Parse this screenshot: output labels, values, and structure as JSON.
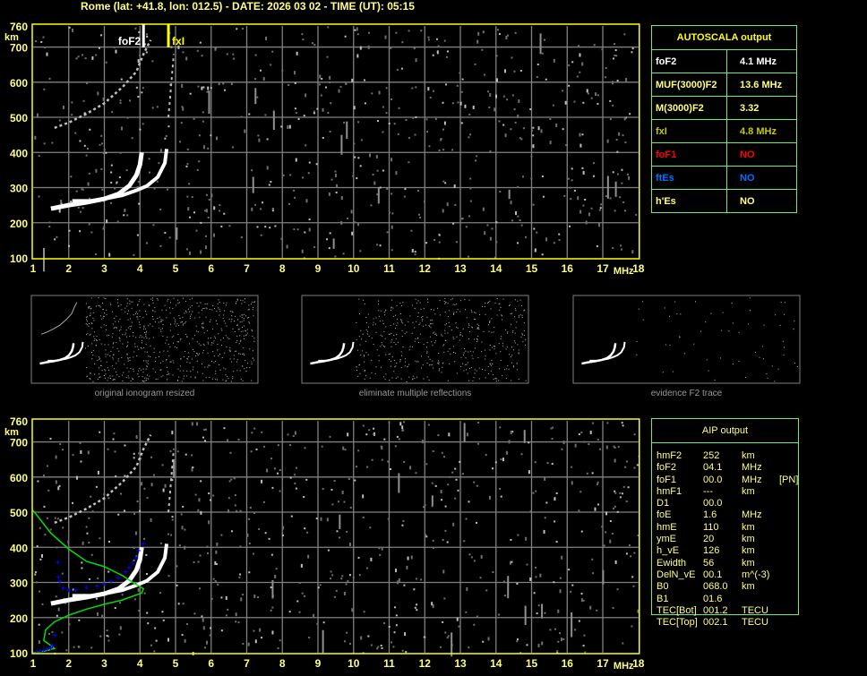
{
  "header": {
    "title": "Rome (lat: +41.8, lon: 012.5) - DATE: 2026 03 02 - TIME (UT): 05:15"
  },
  "axes": {
    "y_ticks": [
      "760",
      "700",
      "600",
      "500",
      "400",
      "300",
      "200",
      "100"
    ],
    "y_unit": "km",
    "x_ticks": [
      "1",
      "2",
      "3",
      "4",
      "5",
      "6",
      "7",
      "8",
      "9",
      "10",
      "11",
      "12",
      "13",
      "14",
      "15",
      "16",
      "17",
      "18"
    ],
    "x_unit": "MHz",
    "x_range_mhz": [
      1,
      18
    ],
    "y_range_km": [
      100,
      760
    ]
  },
  "markers": {
    "foF2": {
      "label": "foF2",
      "freq_mhz": 4.1,
      "color": "#ffffff"
    },
    "fxI": {
      "label": "fxI",
      "freq_mhz": 4.8,
      "color": "#ffff00"
    }
  },
  "colors": {
    "frame": "#ffff00",
    "grid": "#808080",
    "table_border": "#60f080",
    "profile": "#00e000",
    "aip_points": "#0000ff"
  },
  "autoscala": {
    "title": "AUTOSCALA output",
    "rows": [
      {
        "label": "foF2",
        "value": "4.1 MHz",
        "color": "#ffffff"
      },
      {
        "label": "MUF(3000)F2",
        "value": "13.6 MHz",
        "color": "#ffff80"
      },
      {
        "label": "M(3000)F2",
        "value": "3.32",
        "color": "#ffff80"
      },
      {
        "label": "fxI",
        "value": "4.8 MHz",
        "color": "#c8c800"
      },
      {
        "label": "foF1",
        "value": "NO",
        "color": "#ff0000"
      },
      {
        "label": "ftEs",
        "value": "NO",
        "color": "#0070ff"
      },
      {
        "label": "h'Es",
        "value": "NO",
        "color": "#ffff80"
      }
    ]
  },
  "thumbnails": [
    {
      "caption": "original ionogram resized"
    },
    {
      "caption": "eliminate multiple reflections"
    },
    {
      "caption": "evidence F2 trace"
    }
  ],
  "aip": {
    "title": "AIP output",
    "rows": [
      {
        "name": "hmF2",
        "value": "252",
        "unit": "km",
        "extra": ""
      },
      {
        "name": "foF2",
        "value": "04.1",
        "unit": "MHz",
        "extra": ""
      },
      {
        "name": "foF1",
        "value": "00.0",
        "unit": "MHz",
        "extra": "[PN]"
      },
      {
        "name": "hmF1",
        "value": "---",
        "unit": "km",
        "extra": ""
      },
      {
        "name": "D1",
        "value": "00.0",
        "unit": "",
        "extra": ""
      },
      {
        "name": "foE",
        "value": "1.6",
        "unit": "MHz",
        "extra": ""
      },
      {
        "name": "hmE",
        "value": "110",
        "unit": "km",
        "extra": ""
      },
      {
        "name": "ymE",
        "value": "20",
        "unit": "km",
        "extra": ""
      },
      {
        "name": "h_vE",
        "value": "126",
        "unit": "km",
        "extra": ""
      },
      {
        "name": "Ewidth",
        "value": "56",
        "unit": "km",
        "extra": ""
      },
      {
        "name": "DelN_vE",
        "value": "00.1",
        "unit": "m^(-3)",
        "extra": ""
      },
      {
        "name": "B0",
        "value": "068.0",
        "unit": "km",
        "extra": ""
      },
      {
        "name": "B1",
        "value": "01.6",
        "unit": "",
        "extra": ""
      },
      {
        "name": "TEC[Bot]",
        "value": "001.2",
        "unit": "TECU",
        "extra": ""
      },
      {
        "name": "TEC[Top]",
        "value": "002.1",
        "unit": "TECU",
        "extra": ""
      }
    ]
  },
  "traces": {
    "o_mode": [
      [
        1.5,
        240
      ],
      [
        2.0,
        250
      ],
      [
        2.5,
        258
      ],
      [
        3.0,
        268
      ],
      [
        3.4,
        282
      ],
      [
        3.7,
        305
      ],
      [
        3.9,
        335
      ],
      [
        4.0,
        365
      ],
      [
        4.05,
        400
      ]
    ],
    "x_mode": [
      [
        2.1,
        262
      ],
      [
        2.6,
        262
      ],
      [
        3.0,
        268
      ],
      [
        3.5,
        278
      ],
      [
        3.9,
        292
      ],
      [
        4.2,
        305
      ],
      [
        4.5,
        330
      ],
      [
        4.7,
        370
      ],
      [
        4.75,
        410
      ]
    ],
    "multiple": [
      [
        1.6,
        470
      ],
      [
        2.0,
        485
      ],
      [
        2.5,
        510
      ],
      [
        3.0,
        540
      ],
      [
        3.5,
        585
      ],
      [
        3.9,
        630
      ],
      [
        4.1,
        680
      ],
      [
        4.3,
        720
      ]
    ],
    "x_multiple": [
      [
        4.8,
        500
      ],
      [
        4.85,
        560
      ],
      [
        4.9,
        620
      ],
      [
        4.95,
        680
      ]
    ],
    "profile": [
      [
        1.0,
        505
      ],
      [
        1.5,
        440
      ],
      [
        2.0,
        395
      ],
      [
        2.5,
        360
      ],
      [
        3.0,
        345
      ],
      [
        3.5,
        320
      ],
      [
        3.8,
        300
      ],
      [
        4.1,
        282
      ],
      [
        4.05,
        270
      ],
      [
        3.5,
        250
      ],
      [
        3.0,
        238
      ],
      [
        2.5,
        224
      ],
      [
        2.0,
        207
      ],
      [
        1.6,
        188
      ],
      [
        1.35,
        165
      ],
      [
        1.3,
        135
      ],
      [
        1.5,
        120
      ],
      [
        1.6,
        112
      ],
      [
        1.3,
        104
      ],
      [
        1.0,
        101
      ]
    ],
    "aip_points": [
      [
        1.0,
        103
      ],
      [
        1.1,
        103
      ],
      [
        1.2,
        104
      ],
      [
        1.3,
        106
      ],
      [
        1.4,
        110
      ],
      [
        1.5,
        114
      ],
      [
        1.55,
        120
      ],
      [
        1.62,
        150
      ],
      [
        1.7,
        358
      ],
      [
        1.72,
        315
      ],
      [
        1.76,
        302
      ],
      [
        1.85,
        284
      ],
      [
        2.0,
        278
      ],
      [
        2.2,
        278
      ],
      [
        2.5,
        286
      ],
      [
        2.8,
        290
      ],
      [
        3.0,
        296
      ],
      [
        3.2,
        303
      ],
      [
        3.4,
        313
      ],
      [
        3.6,
        330
      ],
      [
        3.7,
        342
      ],
      [
        3.8,
        355
      ],
      [
        3.9,
        370
      ],
      [
        3.97,
        390
      ],
      [
        4.1,
        410
      ]
    ]
  }
}
